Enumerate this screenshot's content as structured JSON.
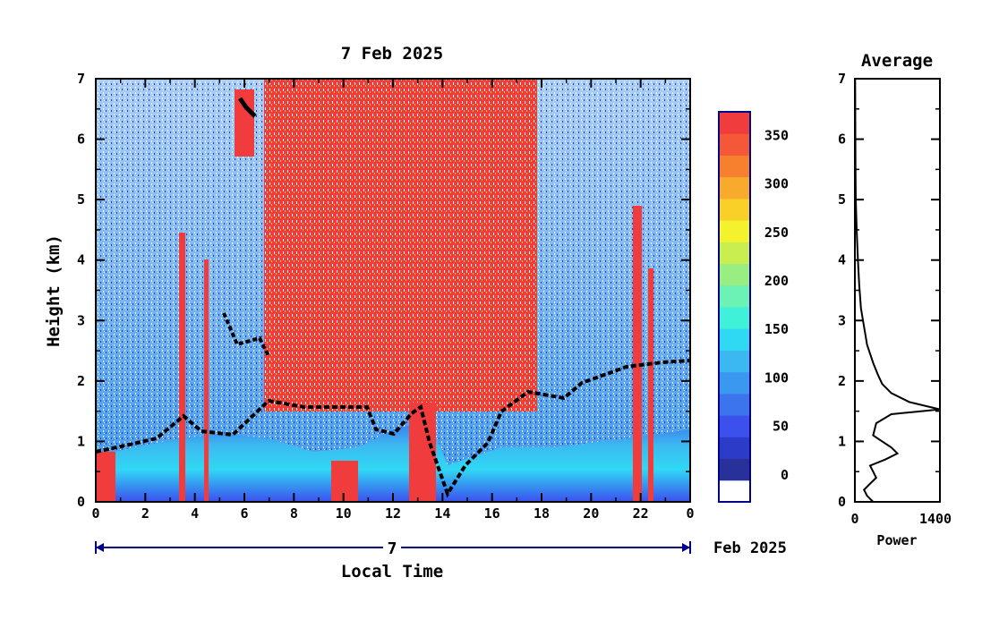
{
  "chart_data": [
    {
      "type": "heatmap",
      "title": "7 Feb 2025",
      "xlabel": "Local Time",
      "ylabel": "Height (km)",
      "xlim": [
        0,
        24
      ],
      "ylim": [
        0,
        7
      ],
      "x_ticks": [
        "0",
        "2",
        "4",
        "6",
        "8",
        "10",
        "12",
        "14",
        "16",
        "18",
        "20",
        "22",
        "0"
      ],
      "y_ticks": [
        "0",
        "1",
        "2",
        "3",
        "4",
        "5",
        "6",
        "7"
      ],
      "date_axis": {
        "day_label": "7",
        "month_label": "Feb 2025"
      },
      "colorbar": {
        "ticks": [
          "0",
          "50",
          "100",
          "150",
          "200",
          "250",
          "300",
          "350"
        ],
        "range": [
          0,
          380
        ],
        "colors": [
          "#ffffff",
          "#28309a",
          "#2c3cc8",
          "#3c50ee",
          "#3c74ee",
          "#3a98ee",
          "#3cb8f0",
          "#30d8f4",
          "#40f0d8",
          "#6cf2b4",
          "#98ee80",
          "#c8ee50",
          "#f4f22c",
          "#f8d028",
          "#f8aa2c",
          "#f6802e",
          "#f45838",
          "#f03c3c"
        ]
      },
      "layers": [
        {
          "description_key": "boundary_layer",
          "height_km_approx": [
            0.0,
            1.5
          ],
          "value_range": [
            80,
            200
          ]
        },
        {
          "description_key": "cloud_band_midday",
          "time_range_h": [
            6.8,
            18.0
          ],
          "height_km": [
            1.6,
            7.0
          ],
          "value_approx": 370
        }
      ]
    },
    {
      "type": "line",
      "title": "Average",
      "xlabel": "Power",
      "ylabel": "",
      "xlim": [
        0,
        1400
      ],
      "ylim": [
        0,
        7
      ],
      "x_ticks": [
        "0",
        "1400"
      ],
      "y_ticks": [
        "0",
        "1",
        "2",
        "3",
        "4",
        "5",
        "6",
        "7"
      ],
      "series": [
        {
          "x": [
            300,
            200,
            150,
            250,
            350,
            300,
            250,
            500,
            700,
            600,
            450,
            300,
            350,
            600,
            1400,
            900,
            600,
            450,
            380,
            300,
            200,
            150,
            100,
            70,
            50,
            30,
            15,
            10,
            8,
            5
          ],
          "y": [
            0.0,
            0.1,
            0.2,
            0.3,
            0.4,
            0.5,
            0.6,
            0.7,
            0.8,
            0.9,
            1.0,
            1.1,
            1.3,
            1.45,
            1.53,
            1.65,
            1.8,
            1.95,
            2.1,
            2.3,
            2.6,
            2.9,
            3.2,
            3.6,
            4.0,
            4.5,
            5.0,
            5.5,
            6.2,
            7.0
          ]
        }
      ]
    }
  ]
}
